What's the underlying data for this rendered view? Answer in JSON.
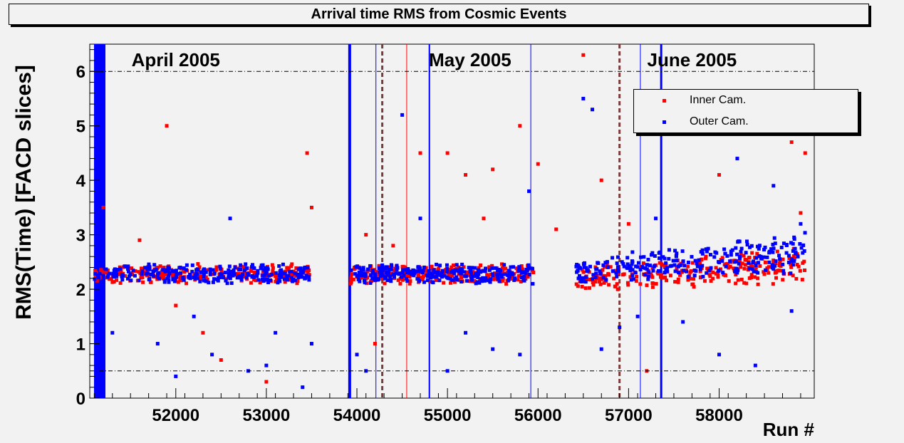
{
  "chart_data": {
    "type": "scatter",
    "title": "Arrival time RMS from Cosmic Events",
    "xlabel": "Run #",
    "ylabel": "RMS(Time) [FACD slices]",
    "xlim": [
      51050,
      59050
    ],
    "ylim": [
      0,
      6.5
    ],
    "xticks": [
      52000,
      53000,
      54000,
      55000,
      56000,
      57000,
      58000
    ],
    "yticks": [
      0,
      1,
      2,
      3,
      4,
      5,
      6
    ],
    "grid": false,
    "legend_position": "top-right",
    "reference_lines": [
      6.0,
      0.5
    ],
    "month_annotations": [
      {
        "text": "April 2005",
        "x": 52000
      },
      {
        "text": "May 2005",
        "x": 55250
      },
      {
        "text": "June 2005",
        "x": 57700
      }
    ],
    "month_boundaries": [
      54280,
      56900
    ],
    "series": [
      {
        "name": "Inner Cam.",
        "color": "#ff0000",
        "baseline_segments": [
          {
            "x": [
              51100,
              53480
            ],
            "y": [
              2.15,
              2.35
            ]
          },
          {
            "x": [
              53930,
              55950
            ],
            "y": [
              2.15,
              2.35
            ]
          },
          {
            "x": [
              56420,
              58950
            ],
            "y": [
              2.0,
              2.7
            ]
          }
        ],
        "outliers": [
          [
            51900,
            5.0
          ],
          [
            51200,
            3.5
          ],
          [
            51600,
            2.9
          ],
          [
            52000,
            1.7
          ],
          [
            52300,
            1.2
          ],
          [
            52500,
            0.7
          ],
          [
            53000,
            0.3
          ],
          [
            53450,
            4.5
          ],
          [
            53500,
            3.5
          ],
          [
            54100,
            3.0
          ],
          [
            54200,
            1.0
          ],
          [
            54400,
            2.8
          ],
          [
            54700,
            4.5
          ],
          [
            55000,
            4.5
          ],
          [
            55200,
            4.1
          ],
          [
            55400,
            3.3
          ],
          [
            55500,
            4.2
          ],
          [
            55800,
            5.0
          ],
          [
            56000,
            4.3
          ],
          [
            56200,
            3.1
          ],
          [
            56500,
            6.3
          ],
          [
            56700,
            4.0
          ],
          [
            57000,
            3.2
          ],
          [
            57200,
            0.5
          ],
          [
            57600,
            2.5
          ],
          [
            58000,
            4.1
          ],
          [
            58600,
            2.5
          ],
          [
            58800,
            4.7
          ],
          [
            58950,
            4.5
          ],
          [
            58900,
            3.4
          ]
        ]
      },
      {
        "name": "Outer Cam.",
        "color": "#0000ff",
        "baseline_segments": [
          {
            "x": [
              51100,
              53480
            ],
            "y": [
              2.15,
              2.35
            ]
          },
          {
            "x": [
              53930,
              55950
            ],
            "y": [
              2.15,
              2.35
            ]
          },
          {
            "x": [
              56420,
              58950
            ],
            "y": [
              2.1,
              3.0
            ]
          }
        ],
        "outliers": [
          [
            51300,
            1.2
          ],
          [
            51800,
            1.0
          ],
          [
            52000,
            0.4
          ],
          [
            52200,
            1.5
          ],
          [
            52400,
            0.8
          ],
          [
            52600,
            3.3
          ],
          [
            52800,
            0.5
          ],
          [
            53000,
            0.6
          ],
          [
            53100,
            1.2
          ],
          [
            53400,
            0.2
          ],
          [
            53500,
            1.0
          ],
          [
            54000,
            0.8
          ],
          [
            54100,
            0.5
          ],
          [
            54500,
            5.2
          ],
          [
            54700,
            3.3
          ],
          [
            55000,
            0.5
          ],
          [
            55200,
            1.2
          ],
          [
            55500,
            0.9
          ],
          [
            55800,
            0.8
          ],
          [
            55900,
            3.8
          ],
          [
            56500,
            5.5
          ],
          [
            56600,
            5.3
          ],
          [
            56700,
            0.9
          ],
          [
            56900,
            1.3
          ],
          [
            57100,
            1.5
          ],
          [
            57300,
            3.3
          ],
          [
            57600,
            1.4
          ],
          [
            58000,
            0.8
          ],
          [
            58200,
            4.4
          ],
          [
            58400,
            0.6
          ],
          [
            58600,
            3.9
          ],
          [
            58800,
            1.6
          ],
          [
            58900,
            3.2
          ]
        ]
      }
    ],
    "vertical_bands": [
      {
        "x": 51160,
        "color": "#0000ff",
        "width": 16
      },
      {
        "x": 53920,
        "color": "#0000ff",
        "width": 4
      },
      {
        "x": 54210,
        "color": "#0000ff",
        "width": 1
      },
      {
        "x": 54550,
        "color": "#ff0000",
        "width": 1
      },
      {
        "x": 54800,
        "color": "#0000ff",
        "width": 2
      },
      {
        "x": 55920,
        "color": "#0000ff",
        "width": 1
      },
      {
        "x": 57130,
        "color": "#0000ff",
        "width": 1
      },
      {
        "x": 57360,
        "color": "#0000ff",
        "width": 3
      }
    ]
  }
}
